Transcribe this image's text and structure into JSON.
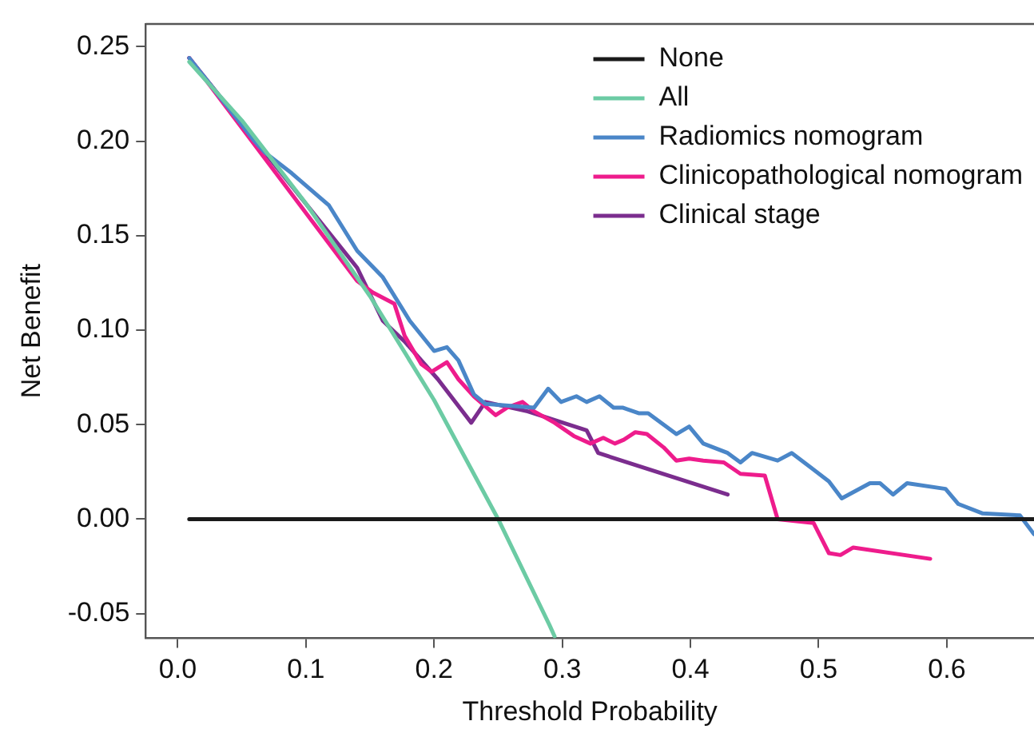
{
  "chart_data": {
    "type": "line",
    "xlabel": "Threshold Probability",
    "ylabel": "Net Benefit",
    "xlim": [
      -0.025,
      0.668
    ],
    "xticks": [
      {
        "value": 0,
        "label": "0.0"
      },
      {
        "value": 0.1,
        "label": "0.1"
      },
      {
        "value": 0.2,
        "label": "0.2"
      },
      {
        "value": 0.3,
        "label": "0.3"
      },
      {
        "value": 0.4,
        "label": "0.4"
      },
      {
        "value": 0.5,
        "label": "0.5"
      },
      {
        "value": 0.6,
        "label": "0.6"
      }
    ],
    "ylim": [
      -0.063,
      0.262
    ],
    "yticks": [
      {
        "value": -0.05,
        "label": "-0.05"
      },
      {
        "value": 0,
        "label": "0.00"
      },
      {
        "value": 0.05,
        "label": "0.05"
      },
      {
        "value": 0.1,
        "label": "0.10"
      },
      {
        "value": 0.15,
        "label": "0.15"
      },
      {
        "value": 0.2,
        "label": "0.20"
      },
      {
        "value": 0.25,
        "label": "0.25"
      }
    ],
    "grid": false,
    "legend": "top right",
    "marker": "none",
    "line_style": "solid",
    "series": [
      {
        "name": "None",
        "color": "#1a1a1a",
        "x": [
          0.009,
          0.668
        ],
        "values": [
          0,
          0
        ]
      },
      {
        "name": "All",
        "color": "#6ccba4",
        "x": [
          0.009,
          0.05,
          0.1,
          0.15,
          0.2,
          0.25,
          0.29,
          0.294
        ],
        "values": [
          0.242,
          0.211,
          0.167,
          0.118,
          0.063,
          0.0,
          -0.056,
          -0.062
        ]
      },
      {
        "name": "Radiomics nomogram",
        "color": "#4a86c8",
        "x": [
          0.009,
          0.06,
          0.068,
          0.089,
          0.106,
          0.118,
          0.14,
          0.16,
          0.181,
          0.2,
          0.21,
          0.219,
          0.231,
          0.24,
          0.278,
          0.289,
          0.299,
          0.311,
          0.319,
          0.329,
          0.34,
          0.347,
          0.36,
          0.367,
          0.389,
          0.399,
          0.41,
          0.429,
          0.439,
          0.448,
          0.468,
          0.479,
          0.508,
          0.518,
          0.54,
          0.548,
          0.558,
          0.569,
          0.599,
          0.609,
          0.628,
          0.657,
          0.668
        ],
        "values": [
          0.244,
          0.2,
          0.194,
          0.183,
          0.173,
          0.166,
          0.142,
          0.128,
          0.105,
          0.089,
          0.091,
          0.084,
          0.066,
          0.061,
          0.059,
          0.069,
          0.062,
          0.065,
          0.062,
          0.065,
          0.059,
          0.059,
          0.056,
          0.056,
          0.045,
          0.049,
          0.04,
          0.035,
          0.03,
          0.035,
          0.031,
          0.035,
          0.02,
          0.011,
          0.019,
          0.019,
          0.013,
          0.019,
          0.016,
          0.008,
          0.003,
          0.002,
          -0.008
        ]
      },
      {
        "name": "Clinicopathological nomogram",
        "color": "#ee1c8c",
        "x": [
          0.009,
          0.14,
          0.152,
          0.169,
          0.177,
          0.19,
          0.198,
          0.21,
          0.219,
          0.231,
          0.248,
          0.257,
          0.269,
          0.278,
          0.294,
          0.309,
          0.322,
          0.332,
          0.341,
          0.348,
          0.357,
          0.366,
          0.379,
          0.389,
          0.399,
          0.41,
          0.426,
          0.439,
          0.458,
          0.468,
          0.496,
          0.508,
          0.517,
          0.527,
          0.587
        ],
        "values": [
          0.244,
          0.126,
          0.12,
          0.114,
          0.097,
          0.082,
          0.078,
          0.083,
          0.074,
          0.065,
          0.055,
          0.059,
          0.062,
          0.057,
          0.051,
          0.044,
          0.04,
          0.043,
          0.04,
          0.042,
          0.046,
          0.045,
          0.038,
          0.031,
          0.032,
          0.031,
          0.03,
          0.024,
          0.023,
          0.0,
          -0.002,
          -0.018,
          -0.019,
          -0.015,
          -0.021
        ]
      },
      {
        "name": "Clinical stage",
        "color": "#7b2d8e",
        "x": [
          0.009,
          0.14,
          0.16,
          0.177,
          0.203,
          0.229,
          0.24,
          0.273,
          0.319,
          0.328,
          0.429
        ],
        "values": [
          0.244,
          0.133,
          0.105,
          0.094,
          0.074,
          0.051,
          0.062,
          0.057,
          0.047,
          0.035,
          0.013
        ]
      }
    ]
  }
}
